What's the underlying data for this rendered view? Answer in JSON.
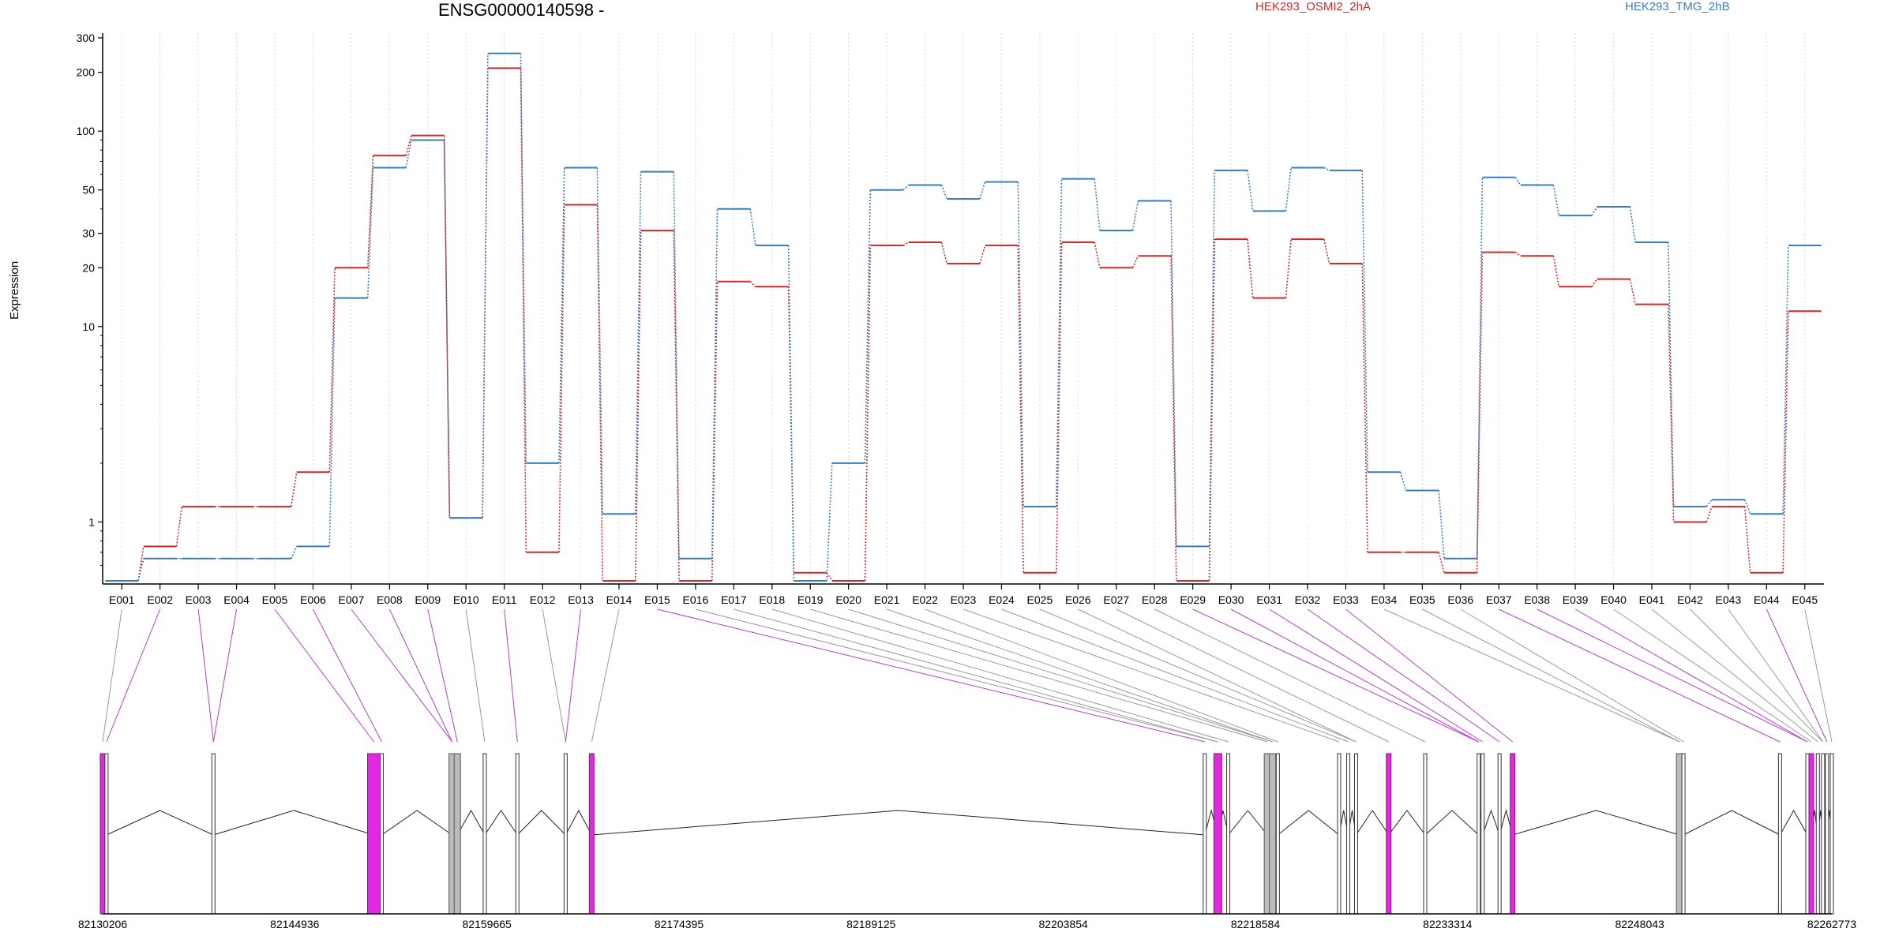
{
  "chart_data": {
    "type": "line",
    "title": "ENSG00000140598 -",
    "ylabel": "Expression",
    "y_scale": "log",
    "ylim": [
      0.5,
      300
    ],
    "y_ticks": [
      "1",
      "10",
      "20",
      "30",
      "50",
      "100",
      "200",
      "300"
    ],
    "series": [
      {
        "name": "HEK293_OSMI2_2hA",
        "color": "#d62728",
        "values": [
          0.5,
          0.75,
          1.2,
          1.2,
          1.2,
          1.8,
          20,
          75,
          95,
          1.05,
          210,
          0.7,
          42,
          0.5,
          31,
          0.5,
          17,
          16,
          0.55,
          0.5,
          26,
          27,
          21,
          26,
          0.55,
          27,
          20,
          23,
          0.5,
          28,
          14,
          28,
          21,
          0.7,
          0.7,
          0.55,
          24,
          23,
          16,
          17.5,
          13,
          1.0,
          1.2,
          0.55,
          12
        ]
      },
      {
        "name": "HEK293_TMG_2hB",
        "color": "#3a7dbe",
        "values": [
          0.5,
          0.65,
          0.65,
          0.65,
          0.65,
          0.75,
          14,
          65,
          90,
          1.05,
          250,
          2.0,
          65,
          1.1,
          62,
          0.65,
          40,
          26,
          0.5,
          2.0,
          50,
          53,
          45,
          55,
          1.2,
          57,
          31,
          44,
          0.75,
          63,
          39,
          65,
          63,
          1.8,
          1.45,
          0.65,
          58,
          53,
          37,
          41,
          27,
          1.2,
          1.3,
          1.1,
          26
        ]
      }
    ],
    "categories": [
      "E001",
      "E002",
      "E003",
      "E004",
      "E005",
      "E006",
      "E007",
      "E008",
      "E009",
      "E010",
      "E011",
      "E012",
      "E013",
      "E014",
      "E015",
      "E016",
      "E017",
      "E018",
      "E019",
      "E020",
      "E021",
      "E022",
      "E023",
      "E024",
      "E025",
      "E026",
      "E027",
      "E028",
      "E029",
      "E030",
      "E031",
      "E032",
      "E033",
      "E034",
      "E035",
      "E036",
      "E037",
      "E038",
      "E039",
      "E040",
      "E041",
      "E042",
      "E043",
      "E044",
      "E045"
    ],
    "highlighted_exons": [
      "E002",
      "E003",
      "E004",
      "E005",
      "E006",
      "E007",
      "E008",
      "E009",
      "E011",
      "E013",
      "E015",
      "E029",
      "E030",
      "E031",
      "E032",
      "E033",
      "E037",
      "E038",
      "E039",
      "E044"
    ],
    "gene_track": {
      "coord_labels": [
        "82130206",
        "82144936",
        "82159665",
        "82174395",
        "82189125",
        "82203854",
        "82218584",
        "82233314",
        "82248043",
        "82262773"
      ],
      "start": 82130206,
      "end": 82262773,
      "exon_positions": [
        82130206,
        82130500,
        82138700,
        82151000,
        82151600,
        82157000,
        82157400,
        82159500,
        82162000,
        82165700,
        82167700,
        82214700,
        82215700,
        82216500,
        82219500,
        82219900,
        82220300,
        82225000,
        82225700,
        82226300,
        82228800,
        82231600,
        82235700,
        82236000,
        82237300,
        82238300,
        82251100,
        82251400,
        82258800,
        82260900,
        82261200,
        82261700,
        82262100,
        82262400,
        82262773
      ],
      "highlight_color": "#e029e0",
      "grey_exons": [
        82157000,
        82157400,
        82219500,
        82219900,
        82251100
      ]
    }
  },
  "colors": {
    "axis": "#000000",
    "grid": "#d9d9d9",
    "highlight": "#b040c0",
    "connector_plain": "#9a9a9a"
  }
}
